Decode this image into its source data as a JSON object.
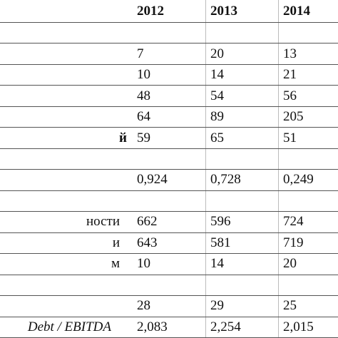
{
  "table": {
    "header": [
      "2012",
      "2013",
      "2014"
    ],
    "rows": [
      {},
      {
        "cells": [
          "7",
          "20",
          "13"
        ]
      },
      {
        "cells": [
          "10",
          "14",
          "21"
        ]
      },
      {
        "cells": [
          "48",
          "54",
          "56"
        ]
      },
      {
        "cells": [
          "64",
          "89",
          "205"
        ]
      },
      {
        "label": "й",
        "cells": [
          "59",
          "65",
          "51"
        ]
      },
      {},
      {
        "cells": [
          "0,924",
          "0,728",
          "0,249"
        ]
      },
      {},
      {
        "label": "ности",
        "cells": [
          "662",
          "596",
          "724"
        ]
      },
      {
        "label": "и",
        "cells": [
          "643",
          "581",
          "719"
        ]
      },
      {
        "label": "м",
        "cells": [
          "10",
          "14",
          "20"
        ]
      },
      {},
      {
        "cells": [
          "28",
          "29",
          "25"
        ]
      },
      {
        "label": "Debt / EBITDA",
        "cells": [
          "2,083",
          "2,254",
          "2,015"
        ]
      }
    ]
  }
}
